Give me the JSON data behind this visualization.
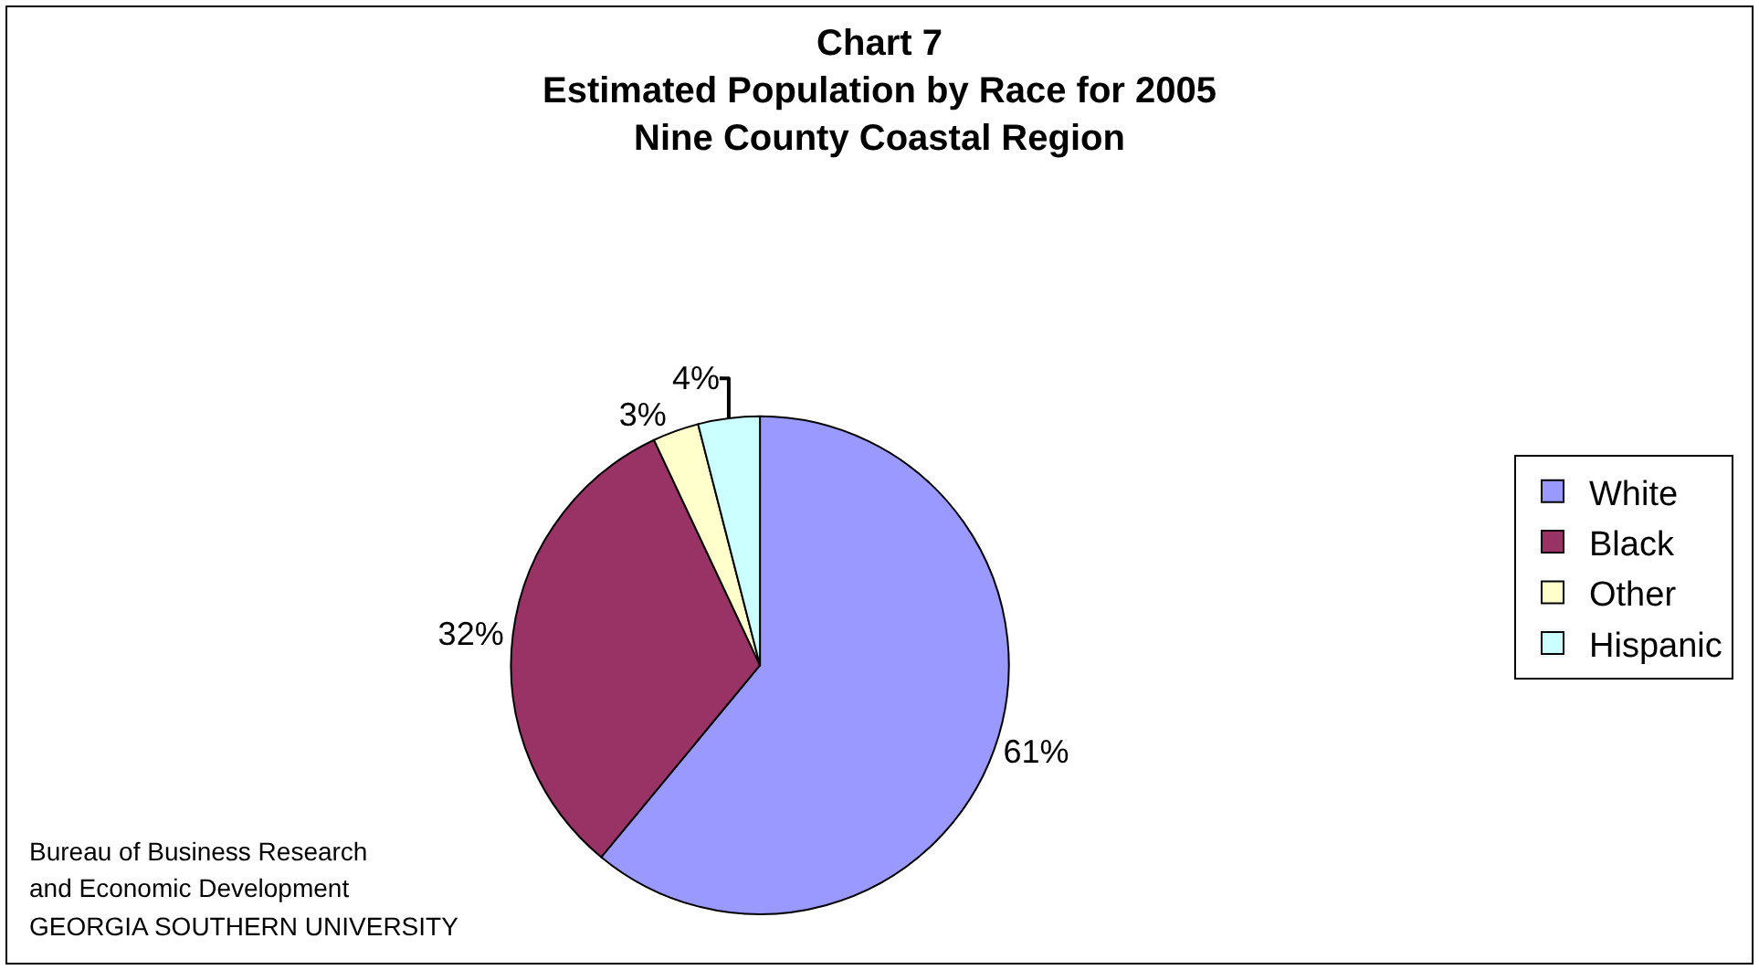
{
  "chart_data": {
    "type": "pie",
    "title": "Chart 7\nEstimated Population by Race for 2005\nNine County Coastal Region",
    "categories": [
      "White",
      "Black",
      "Other",
      "Hispanic"
    ],
    "values": [
      61,
      32,
      3,
      4
    ],
    "value_labels": [
      "61%",
      "32%",
      "3%",
      "4%"
    ],
    "colors": [
      "#9999ff",
      "#993366",
      "#ffffcc",
      "#ccffff"
    ],
    "legend": "right",
    "annotations": [
      "Bureau of Business Research",
      "and Economic Development",
      "GEORGIA SOUTHERN UNIVERSITY"
    ]
  }
}
